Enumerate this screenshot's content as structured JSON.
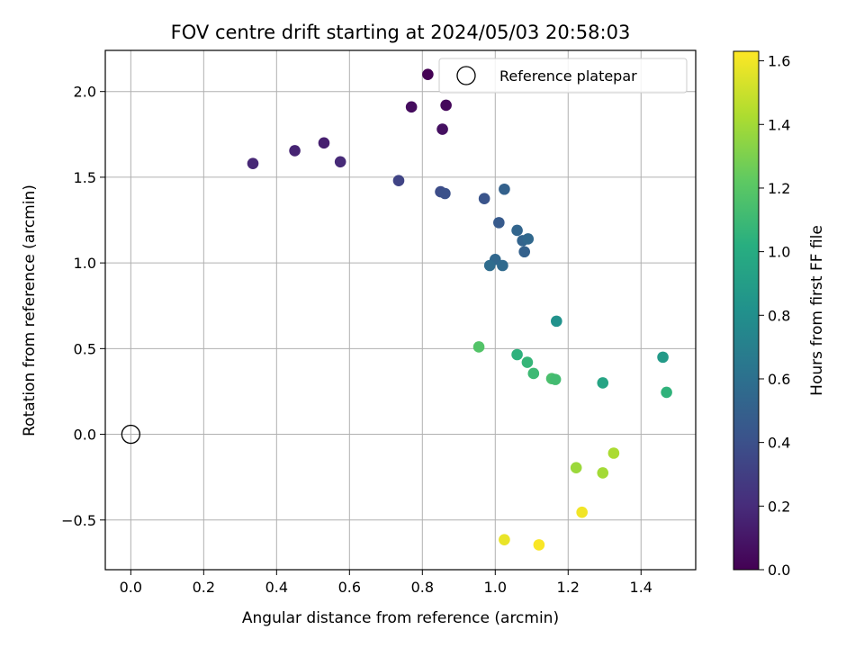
{
  "chart_data": {
    "type": "scatter",
    "title": "FOV centre drift starting at 2024/05/03 20:58:03",
    "xlabel": "Angular distance from reference (arcmin)",
    "ylabel": "Rotation from reference (arcmin)",
    "xlim": [
      -0.07,
      1.55
    ],
    "ylim": [
      -0.79,
      2.24
    ],
    "xticks": [
      0.0,
      0.2,
      0.4,
      0.6,
      0.8,
      1.0,
      1.2,
      1.4
    ],
    "xtick_labels": [
      "0.0",
      "0.2",
      "0.4",
      "0.6",
      "0.8",
      "1.0",
      "1.2",
      "1.4"
    ],
    "yticks": [
      -0.5,
      0.0,
      0.5,
      1.0,
      1.5,
      2.0
    ],
    "ytick_labels": [
      "−0.5",
      "0.0",
      "0.5",
      "1.0",
      "1.5",
      "2.0"
    ],
    "grid": true,
    "legend": {
      "placement": "top-right",
      "entries": [
        "Reference platepar"
      ]
    },
    "reference_point": {
      "x": 0.0,
      "y": 0.0
    },
    "colormap": "viridis",
    "colorbar": {
      "label": "Hours from first FF file",
      "range": [
        0.0,
        1.63
      ],
      "ticks": [
        0.0,
        0.2,
        0.4,
        0.6,
        0.8,
        1.0,
        1.2,
        1.4,
        1.6
      ],
      "tick_labels": [
        "0.0",
        "0.2",
        "0.4",
        "0.6",
        "0.8",
        "1.0",
        "1.2",
        "1.4",
        "1.6"
      ]
    },
    "points": [
      {
        "x": 0.815,
        "y": 2.1,
        "c": 0.0
      },
      {
        "x": 0.865,
        "y": 1.92,
        "c": 0.03
      },
      {
        "x": 0.77,
        "y": 1.91,
        "c": 0.05
      },
      {
        "x": 0.855,
        "y": 1.78,
        "c": 0.07
      },
      {
        "x": 0.335,
        "y": 1.58,
        "c": 0.18
      },
      {
        "x": 0.45,
        "y": 1.655,
        "c": 0.16
      },
      {
        "x": 0.53,
        "y": 1.7,
        "c": 0.14
      },
      {
        "x": 0.575,
        "y": 1.59,
        "c": 0.19
      },
      {
        "x": 0.735,
        "y": 1.48,
        "c": 0.33
      },
      {
        "x": 0.85,
        "y": 1.415,
        "c": 0.38
      },
      {
        "x": 0.862,
        "y": 1.405,
        "c": 0.4
      },
      {
        "x": 0.97,
        "y": 1.375,
        "c": 0.42
      },
      {
        "x": 1.025,
        "y": 1.43,
        "c": 0.5
      },
      {
        "x": 1.01,
        "y": 1.235,
        "c": 0.46
      },
      {
        "x": 1.06,
        "y": 1.19,
        "c": 0.53
      },
      {
        "x": 1.075,
        "y": 1.13,
        "c": 0.52
      },
      {
        "x": 1.09,
        "y": 1.14,
        "c": 0.55
      },
      {
        "x": 1.08,
        "y": 1.065,
        "c": 0.5
      },
      {
        "x": 1.0,
        "y": 1.02,
        "c": 0.54
      },
      {
        "x": 0.985,
        "y": 0.985,
        "c": 0.57
      },
      {
        "x": 1.02,
        "y": 0.985,
        "c": 0.56
      },
      {
        "x": 1.168,
        "y": 0.66,
        "c": 0.82
      },
      {
        "x": 0.955,
        "y": 0.51,
        "c": 1.18
      },
      {
        "x": 1.06,
        "y": 0.465,
        "c": 1.04
      },
      {
        "x": 1.088,
        "y": 0.42,
        "c": 1.07
      },
      {
        "x": 1.105,
        "y": 0.355,
        "c": 1.1
      },
      {
        "x": 1.155,
        "y": 0.325,
        "c": 1.15
      },
      {
        "x": 1.165,
        "y": 0.32,
        "c": 1.12
      },
      {
        "x": 1.295,
        "y": 0.3,
        "c": 0.95
      },
      {
        "x": 1.46,
        "y": 0.45,
        "c": 0.88
      },
      {
        "x": 1.47,
        "y": 0.245,
        "c": 1.05
      },
      {
        "x": 1.325,
        "y": -0.11,
        "c": 1.42
      },
      {
        "x": 1.222,
        "y": -0.195,
        "c": 1.38
      },
      {
        "x": 1.295,
        "y": -0.225,
        "c": 1.4
      },
      {
        "x": 1.238,
        "y": -0.455,
        "c": 1.6
      },
      {
        "x": 1.025,
        "y": -0.615,
        "c": 1.58
      },
      {
        "x": 1.12,
        "y": -0.645,
        "c": 1.62
      }
    ]
  }
}
